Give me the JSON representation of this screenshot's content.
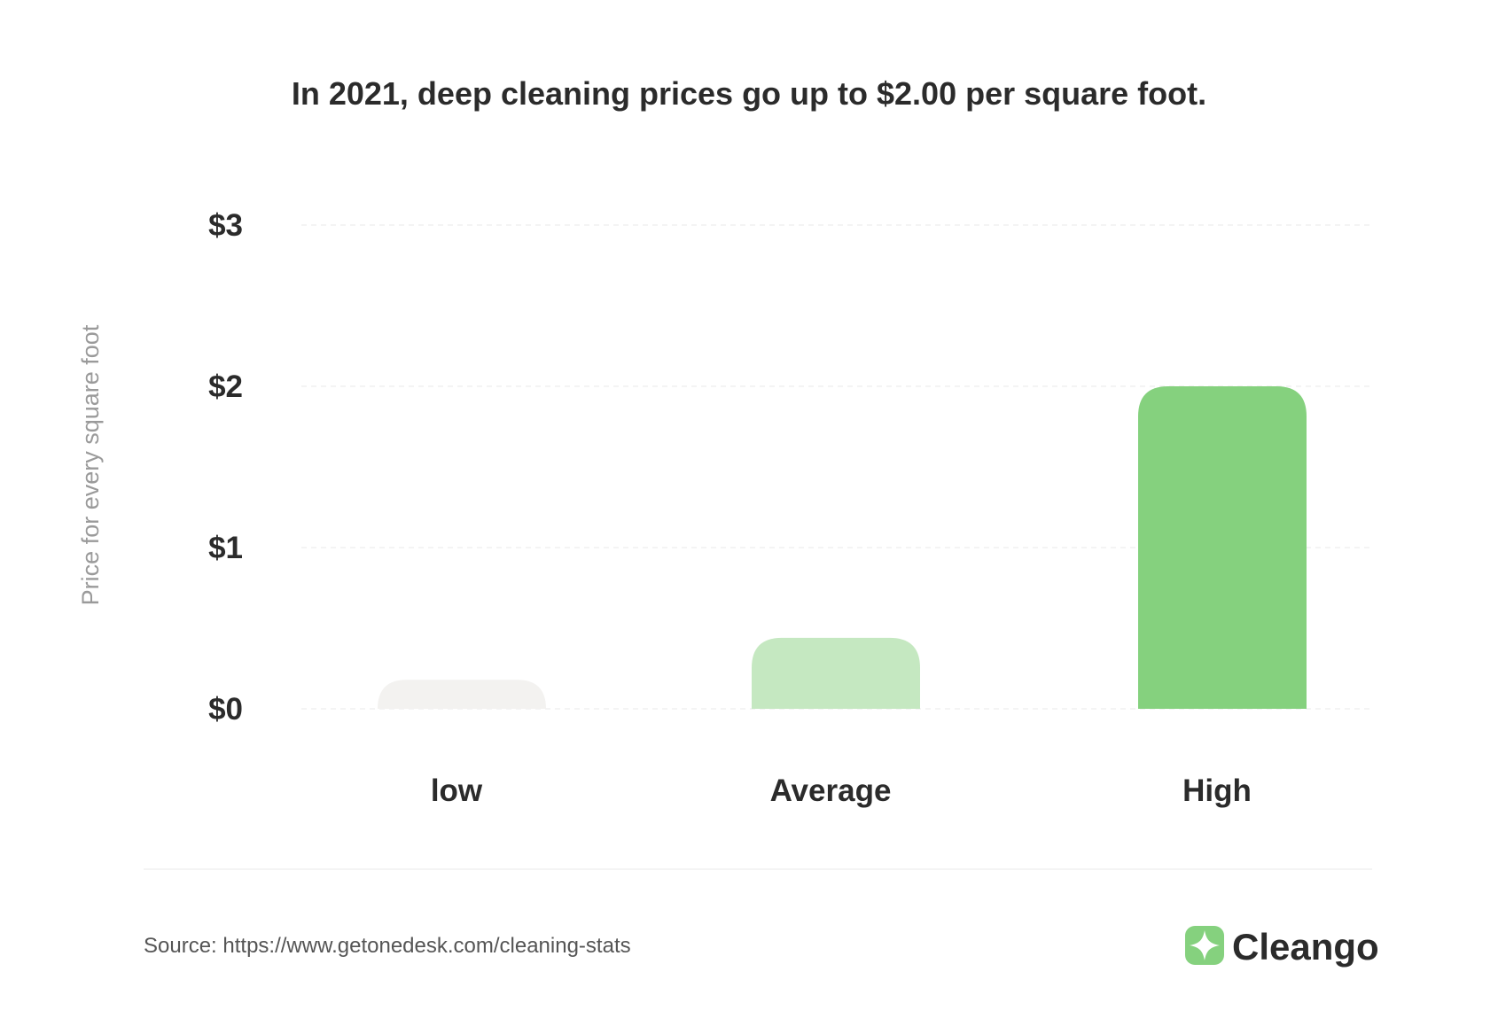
{
  "chart_data": {
    "type": "bar",
    "title": "In 2021, deep cleaning prices go up to $2.00 per square foot.",
    "ylabel": "Price for every square foot",
    "xlabel": "",
    "categories": [
      "low",
      "Average",
      "High"
    ],
    "values": [
      0.18,
      0.44,
      2.0
    ],
    "bar_colors": [
      "#f3f2f0",
      "#c5e8c1",
      "#85d17e"
    ],
    "ylim": [
      0,
      3
    ],
    "yticks": [
      0,
      1,
      2,
      3
    ],
    "ytick_labels": [
      "$0",
      "$1",
      "$2",
      "$3"
    ],
    "grid": true,
    "legend": "none"
  },
  "footer": {
    "source": "Source: https://www.getonedesk.com/cleaning-stats",
    "brand_name": "Cleango",
    "brand_icon": "cleango-logo-icon",
    "brand_color": "#85d17e"
  }
}
